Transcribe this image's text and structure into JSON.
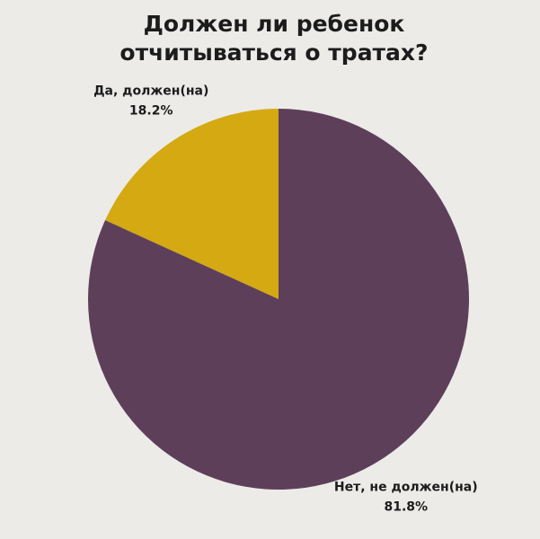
{
  "chart_data": {
    "type": "pie",
    "title": [
      "Должен ли ребенок",
      "отчитываться о тратах?"
    ],
    "categories": [
      "Да, должен(на)",
      "Нет, не должен(на)"
    ],
    "values": [
      18.2,
      81.8
    ],
    "value_labels": [
      "18.2%",
      "81.8%"
    ],
    "colors": [
      "#d4a912",
      "#5e3f5a"
    ],
    "direction": "counterclockwise"
  }
}
